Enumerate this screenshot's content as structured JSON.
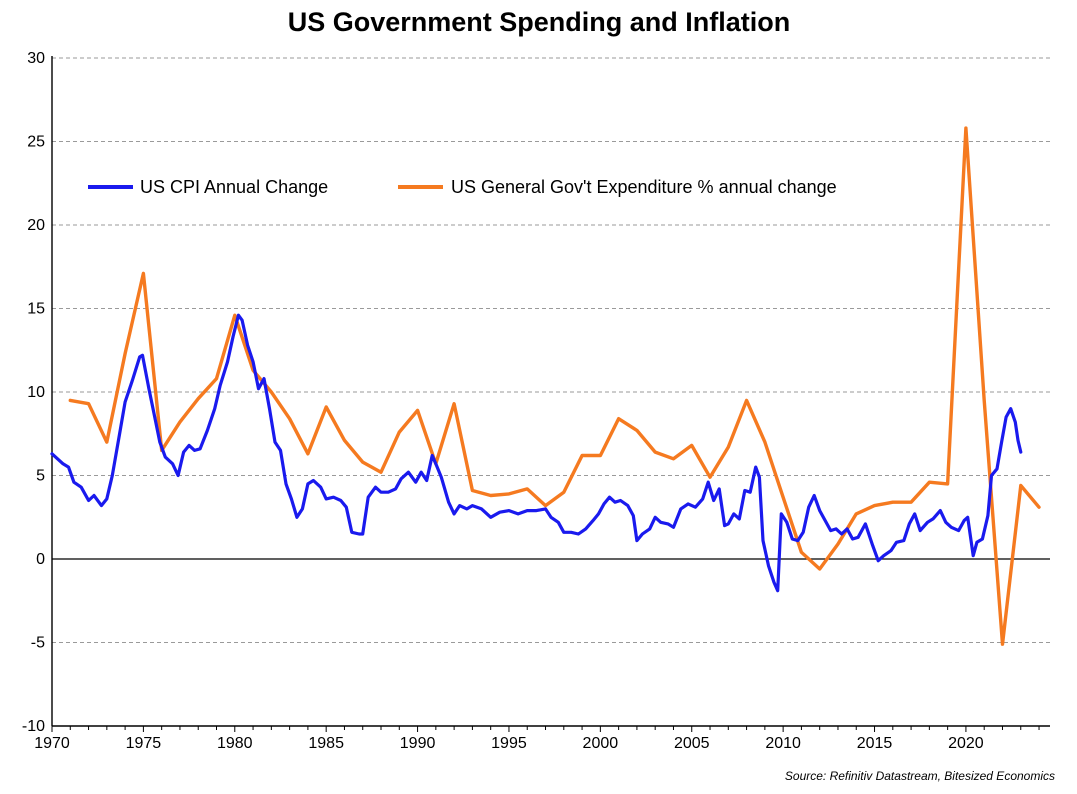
{
  "chart_data": {
    "type": "line",
    "title": "US Government Spending and Inflation",
    "xlabel": "",
    "ylabel": "",
    "xlim": [
      1970,
      2024.6
    ],
    "ylim": [
      -10,
      30
    ],
    "x_ticks": [
      1970,
      1975,
      1980,
      1985,
      1990,
      1995,
      2000,
      2005,
      2010,
      2015,
      2020
    ],
    "y_ticks": [
      -10,
      -5,
      0,
      5,
      10,
      15,
      20,
      25,
      30
    ],
    "grid": "horizontal dashed",
    "legend_position": "top-left",
    "source": "Source: Refinitiv Datastream, Bitesized Economics",
    "series": [
      {
        "name": "US CPI Annual Change",
        "color": "#1a1aee",
        "points": [
          [
            1970.0,
            6.3
          ],
          [
            1970.3,
            6.0
          ],
          [
            1970.6,
            5.7
          ],
          [
            1970.9,
            5.5
          ],
          [
            1971.2,
            4.6
          ],
          [
            1971.6,
            4.3
          ],
          [
            1972.0,
            3.5
          ],
          [
            1972.3,
            3.8
          ],
          [
            1972.7,
            3.2
          ],
          [
            1973.0,
            3.6
          ],
          [
            1973.3,
            5.0
          ],
          [
            1973.7,
            7.5
          ],
          [
            1974.0,
            9.4
          ],
          [
            1974.4,
            10.7
          ],
          [
            1974.8,
            12.1
          ],
          [
            1974.95,
            12.2
          ],
          [
            1975.3,
            10.2
          ],
          [
            1975.6,
            8.6
          ],
          [
            1975.9,
            7.0
          ],
          [
            1976.2,
            6.1
          ],
          [
            1976.6,
            5.7
          ],
          [
            1976.9,
            5.0
          ],
          [
            1977.2,
            6.4
          ],
          [
            1977.5,
            6.8
          ],
          [
            1977.8,
            6.5
          ],
          [
            1978.1,
            6.6
          ],
          [
            1978.5,
            7.7
          ],
          [
            1978.9,
            9.0
          ],
          [
            1979.2,
            10.4
          ],
          [
            1979.6,
            11.8
          ],
          [
            1979.9,
            13.3
          ],
          [
            1980.2,
            14.6
          ],
          [
            1980.4,
            14.3
          ],
          [
            1980.7,
            12.8
          ],
          [
            1981.0,
            11.8
          ],
          [
            1981.3,
            10.2
          ],
          [
            1981.6,
            10.8
          ],
          [
            1981.9,
            9.0
          ],
          [
            1982.2,
            7.0
          ],
          [
            1982.5,
            6.5
          ],
          [
            1982.8,
            4.5
          ],
          [
            1983.1,
            3.6
          ],
          [
            1983.4,
            2.5
          ],
          [
            1983.7,
            3.0
          ],
          [
            1984.0,
            4.5
          ],
          [
            1984.3,
            4.7
          ],
          [
            1984.7,
            4.3
          ],
          [
            1985.0,
            3.6
          ],
          [
            1985.4,
            3.7
          ],
          [
            1985.8,
            3.5
          ],
          [
            1986.1,
            3.1
          ],
          [
            1986.4,
            1.6
          ],
          [
            1986.8,
            1.5
          ],
          [
            1987.0,
            1.5
          ],
          [
            1987.3,
            3.7
          ],
          [
            1987.7,
            4.3
          ],
          [
            1988.0,
            4.0
          ],
          [
            1988.4,
            4.0
          ],
          [
            1988.8,
            4.2
          ],
          [
            1989.1,
            4.8
          ],
          [
            1989.5,
            5.2
          ],
          [
            1989.9,
            4.6
          ],
          [
            1990.2,
            5.2
          ],
          [
            1990.5,
            4.7
          ],
          [
            1990.8,
            6.2
          ],
          [
            1991.0,
            5.7
          ],
          [
            1991.3,
            4.9
          ],
          [
            1991.7,
            3.4
          ],
          [
            1992.0,
            2.7
          ],
          [
            1992.3,
            3.2
          ],
          [
            1992.7,
            3.0
          ],
          [
            1993.0,
            3.2
          ],
          [
            1993.5,
            3.0
          ],
          [
            1994.0,
            2.5
          ],
          [
            1994.5,
            2.8
          ],
          [
            1995.0,
            2.9
          ],
          [
            1995.5,
            2.7
          ],
          [
            1996.0,
            2.9
          ],
          [
            1996.5,
            2.9
          ],
          [
            1997.0,
            3.0
          ],
          [
            1997.3,
            2.5
          ],
          [
            1997.7,
            2.2
          ],
          [
            1998.0,
            1.6
          ],
          [
            1998.4,
            1.6
          ],
          [
            1998.8,
            1.5
          ],
          [
            1999.2,
            1.8
          ],
          [
            1999.6,
            2.3
          ],
          [
            1999.9,
            2.7
          ],
          [
            2000.2,
            3.3
          ],
          [
            2000.5,
            3.7
          ],
          [
            2000.8,
            3.4
          ],
          [
            2001.1,
            3.5
          ],
          [
            2001.5,
            3.2
          ],
          [
            2001.8,
            2.6
          ],
          [
            2002.0,
            1.1
          ],
          [
            2002.3,
            1.5
          ],
          [
            2002.7,
            1.8
          ],
          [
            2003.0,
            2.5
          ],
          [
            2003.3,
            2.2
          ],
          [
            2003.7,
            2.1
          ],
          [
            2004.0,
            1.9
          ],
          [
            2004.4,
            3.0
          ],
          [
            2004.8,
            3.3
          ],
          [
            2005.2,
            3.1
          ],
          [
            2005.6,
            3.6
          ],
          [
            2005.9,
            4.6
          ],
          [
            2006.2,
            3.5
          ],
          [
            2006.5,
            4.2
          ],
          [
            2006.8,
            2.0
          ],
          [
            2007.0,
            2.1
          ],
          [
            2007.3,
            2.7
          ],
          [
            2007.6,
            2.4
          ],
          [
            2007.9,
            4.1
          ],
          [
            2008.2,
            4.0
          ],
          [
            2008.5,
            5.5
          ],
          [
            2008.7,
            4.9
          ],
          [
            2008.9,
            1.1
          ],
          [
            2009.2,
            -0.4
          ],
          [
            2009.5,
            -1.4
          ],
          [
            2009.7,
            -1.9
          ],
          [
            2009.9,
            2.7
          ],
          [
            2010.2,
            2.2
          ],
          [
            2010.5,
            1.2
          ],
          [
            2010.8,
            1.1
          ],
          [
            2011.1,
            1.6
          ],
          [
            2011.4,
            3.1
          ],
          [
            2011.7,
            3.8
          ],
          [
            2012.0,
            2.9
          ],
          [
            2012.3,
            2.3
          ],
          [
            2012.6,
            1.7
          ],
          [
            2012.9,
            1.8
          ],
          [
            2013.2,
            1.5
          ],
          [
            2013.5,
            1.8
          ],
          [
            2013.8,
            1.2
          ],
          [
            2014.1,
            1.3
          ],
          [
            2014.5,
            2.1
          ],
          [
            2014.9,
            0.8
          ],
          [
            2015.2,
            -0.1
          ],
          [
            2015.5,
            0.2
          ],
          [
            2015.9,
            0.5
          ],
          [
            2016.2,
            1.0
          ],
          [
            2016.6,
            1.1
          ],
          [
            2016.9,
            2.1
          ],
          [
            2017.2,
            2.7
          ],
          [
            2017.5,
            1.7
          ],
          [
            2017.9,
            2.2
          ],
          [
            2018.2,
            2.4
          ],
          [
            2018.6,
            2.9
          ],
          [
            2018.9,
            2.2
          ],
          [
            2019.2,
            1.9
          ],
          [
            2019.6,
            1.7
          ],
          [
            2019.9,
            2.3
          ],
          [
            2020.1,
            2.5
          ],
          [
            2020.4,
            0.2
          ],
          [
            2020.6,
            1.0
          ],
          [
            2020.9,
            1.2
          ],
          [
            2021.2,
            2.6
          ],
          [
            2021.4,
            5.0
          ],
          [
            2021.7,
            5.4
          ],
          [
            2021.95,
            7.0
          ],
          [
            2022.2,
            8.5
          ],
          [
            2022.45,
            9.0
          ],
          [
            2022.7,
            8.2
          ],
          [
            2022.85,
            7.1
          ],
          [
            2023.0,
            6.4
          ]
        ]
      },
      {
        "name": "US General Gov't Expenditure % annual change",
        "color": "#f57a20",
        "points": [
          [
            1971,
            9.5
          ],
          [
            1972,
            9.3
          ],
          [
            1973,
            7.0
          ],
          [
            1974,
            12.3
          ],
          [
            1975,
            17.1
          ],
          [
            1976,
            6.5
          ],
          [
            1977,
            8.2
          ],
          [
            1978,
            9.6
          ],
          [
            1979,
            10.8
          ],
          [
            1980,
            14.6
          ],
          [
            1981,
            11.3
          ],
          [
            1982,
            10.0
          ],
          [
            1983,
            8.4
          ],
          [
            1984,
            6.3
          ],
          [
            1985,
            9.1
          ],
          [
            1986,
            7.1
          ],
          [
            1987,
            5.8
          ],
          [
            1988,
            5.2
          ],
          [
            1989,
            7.6
          ],
          [
            1990,
            8.9
          ],
          [
            1991,
            5.7
          ],
          [
            1992,
            9.3
          ],
          [
            1993,
            4.1
          ],
          [
            1994,
            3.8
          ],
          [
            1995,
            3.9
          ],
          [
            1996,
            4.2
          ],
          [
            1997,
            3.2
          ],
          [
            1998,
            4.0
          ],
          [
            1999,
            6.2
          ],
          [
            2000,
            6.2
          ],
          [
            2001,
            8.4
          ],
          [
            2002,
            7.7
          ],
          [
            2003,
            6.4
          ],
          [
            2004,
            6.0
          ],
          [
            2005,
            6.8
          ],
          [
            2006,
            4.9
          ],
          [
            2007,
            6.7
          ],
          [
            2008,
            9.5
          ],
          [
            2009,
            7.0
          ],
          [
            2010,
            3.7
          ],
          [
            2011,
            0.4
          ],
          [
            2012,
            -0.6
          ],
          [
            2013,
            0.9
          ],
          [
            2014,
            2.7
          ],
          [
            2015,
            3.2
          ],
          [
            2016,
            3.4
          ],
          [
            2017,
            3.4
          ],
          [
            2018,
            4.6
          ],
          [
            2019,
            4.5
          ],
          [
            2020,
            25.8
          ],
          [
            2021,
            9.5
          ],
          [
            2022,
            -5.1
          ],
          [
            2023,
            4.4
          ],
          [
            2024,
            3.1
          ]
        ]
      }
    ]
  }
}
